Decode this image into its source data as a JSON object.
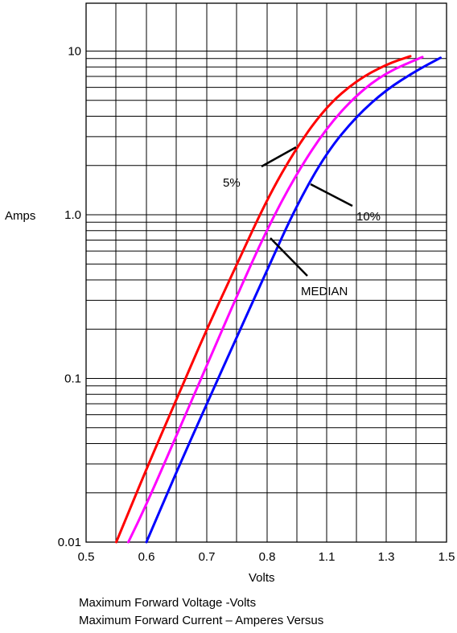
{
  "chart_data": {
    "type": "line",
    "xlabel": "Volts",
    "ylabel": "Amps",
    "y_scale": "log",
    "ylim": [
      0.01,
      20
    ],
    "x_ticks": [
      "0.5",
      "0.6",
      "0.7",
      "0.8",
      "1.1",
      "1.3",
      "1.5"
    ],
    "y_ticks": [
      "0.01",
      "0.1",
      "1.0",
      "10"
    ],
    "grid": true,
    "series": [
      {
        "name": "5%",
        "color": "#ff0000",
        "points": [
          [
            0.55,
            0.01
          ],
          [
            0.6,
            0.028
          ],
          [
            0.65,
            0.075
          ],
          [
            0.7,
            0.2
          ],
          [
            0.75,
            0.5
          ],
          [
            0.8,
            1.25
          ],
          [
            0.85,
            2.6
          ],
          [
            0.9,
            4.6
          ],
          [
            0.95,
            6.6
          ],
          [
            1.0,
            8.3
          ],
          [
            1.04,
            9.3
          ]
        ]
      },
      {
        "name": "MEDIAN",
        "color": "#ff00ff",
        "points": [
          [
            0.57,
            0.01
          ],
          [
            0.6,
            0.017
          ],
          [
            0.65,
            0.045
          ],
          [
            0.7,
            0.12
          ],
          [
            0.75,
            0.32
          ],
          [
            0.8,
            0.82
          ],
          [
            0.85,
            1.8
          ],
          [
            0.9,
            3.4
          ],
          [
            0.95,
            5.4
          ],
          [
            1.0,
            7.4
          ],
          [
            1.06,
            9.2
          ]
        ]
      },
      {
        "name": "10%",
        "color": "#0000ff",
        "points": [
          [
            0.6,
            0.01
          ],
          [
            0.65,
            0.027
          ],
          [
            0.7,
            0.07
          ],
          [
            0.75,
            0.18
          ],
          [
            0.8,
            0.46
          ],
          [
            0.85,
            1.15
          ],
          [
            0.9,
            2.4
          ],
          [
            0.95,
            4.0
          ],
          [
            1.0,
            5.8
          ],
          [
            1.05,
            7.6
          ],
          [
            1.09,
            9.1
          ]
        ]
      }
    ],
    "annotations": [
      "5%",
      "10%",
      "MEDIAN"
    ],
    "caption_lines": [
      "Maximum Forward Voltage -Volts",
      "Maximum Forward Current – Amperes Versus"
    ]
  }
}
